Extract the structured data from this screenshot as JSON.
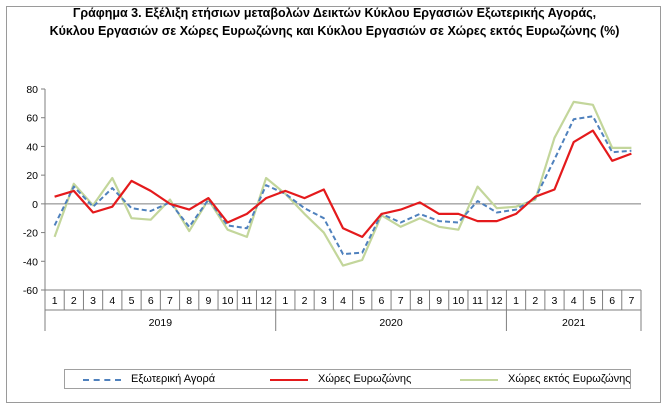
{
  "chart_data": {
    "type": "line",
    "title_line1": "Γράφημα 3. Εξέλιξη  ετήσιων μεταβολών Δεικτών Κύκλου Εργασιών Εξωτερικής Αγοράς,",
    "title_line2": "Κύκλου Εργασιών σε Χώρες Ευρωζώνης και Κύκλου Εργασιών σε Χώρες εκτός Ευρωζώνης (%)",
    "ylim": [
      -60,
      80
    ],
    "yticks": [
      -60,
      -40,
      -20,
      0,
      20,
      40,
      60,
      80
    ],
    "x_months": [
      "1",
      "2",
      "3",
      "4",
      "5",
      "6",
      "7",
      "8",
      "9",
      "10",
      "11",
      "12",
      "1",
      "2",
      "3",
      "4",
      "5",
      "6",
      "7",
      "8",
      "9",
      "10",
      "11",
      "12",
      "1",
      "2",
      "3",
      "4",
      "5",
      "6",
      "7"
    ],
    "years": [
      {
        "label": "2019",
        "start": 0,
        "end": 11
      },
      {
        "label": "2020",
        "start": 12,
        "end": 23
      },
      {
        "label": "2021",
        "start": 24,
        "end": 30
      }
    ],
    "grid": false,
    "legend_position": "bottom",
    "series": [
      {
        "name": "Εξωτερική Αγορά",
        "color": "#4f81bd",
        "style": "dashed",
        "values": [
          -15,
          12,
          -2,
          11,
          -3,
          -5,
          1,
          -16,
          3,
          -15,
          -17,
          13,
          7,
          -3,
          -10,
          -35,
          -34,
          -7,
          -13,
          -7,
          -12,
          -13,
          2,
          -6,
          -4,
          4,
          31,
          59,
          61,
          36,
          37
        ]
      },
      {
        "name": "Χώρες Ευρωζώνης",
        "color": "#e41a1c",
        "style": "solid",
        "values": [
          5,
          9,
          -6,
          -2,
          16,
          9,
          0,
          -4,
          4,
          -13,
          -7,
          4,
          9,
          4,
          10,
          -17,
          -23,
          -7,
          -4,
          1,
          -7,
          -7,
          -12,
          -12,
          -7,
          5,
          10,
          43,
          51,
          30,
          35
        ]
      },
      {
        "name": "Χώρες εκτός Ευρωζώνης",
        "color": "#c3d69b",
        "style": "solid",
        "values": [
          -23,
          14,
          -1,
          18,
          -10,
          -11,
          3,
          -19,
          3,
          -18,
          -23,
          18,
          7,
          -7,
          -20,
          -43,
          -39,
          -8,
          -16,
          -10,
          -16,
          -18,
          12,
          -3,
          -2,
          3,
          46,
          71,
          69,
          39,
          39
        ]
      }
    ]
  }
}
